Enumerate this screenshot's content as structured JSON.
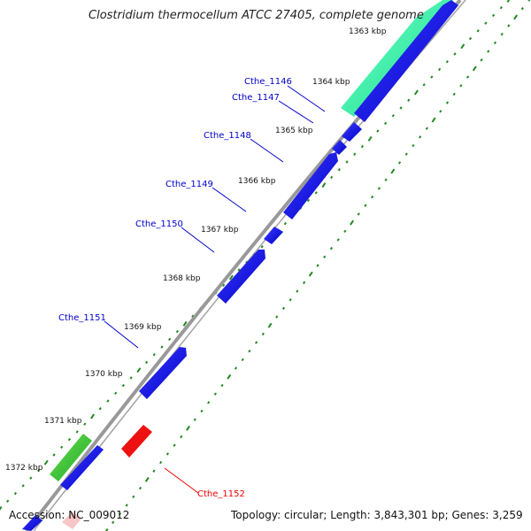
{
  "title": "Clostridium thermocellum ATCC 27405, complete genome",
  "footer": {
    "accession": "Accession: NC_009012",
    "summary": "Topology: circular; Length: 3,843,301 bp; Genes: 3,259"
  },
  "ticks": [
    {
      "label": "1363 kbp"
    },
    {
      "label": "1364 kbp"
    },
    {
      "label": "1365 kbp"
    },
    {
      "label": "1366 kbp"
    },
    {
      "label": "1367 kbp"
    },
    {
      "label": "1368 kbp"
    },
    {
      "label": "1369 kbp"
    },
    {
      "label": "1370 kbp"
    },
    {
      "label": "1371 kbp"
    },
    {
      "label": "1372 kbp"
    }
  ],
  "genes": [
    {
      "label": "Cthe_1146",
      "strand": "forward",
      "color": "#0000ee"
    },
    {
      "label": "Cthe_1147",
      "strand": "forward",
      "color": "#0000ee"
    },
    {
      "label": "Cthe_1148",
      "strand": "forward",
      "color": "#0000ee"
    },
    {
      "label": "Cthe_1149",
      "strand": "forward",
      "color": "#0000ee"
    },
    {
      "label": "Cthe_1150",
      "strand": "forward",
      "color": "#0000ee"
    },
    {
      "label": "Cthe_1151",
      "strand": "forward",
      "color": "#0000ee"
    },
    {
      "label": "Cthe_1152",
      "strand": "reverse",
      "color": "#ee0000"
    }
  ],
  "colors": {
    "forward_cds": "#0000ee",
    "reverse_cds": "#ee0000",
    "feature_green": "#33cc33",
    "feature_cyan": "#33ee99",
    "backbone": "#888888",
    "tick_marks": "#228822"
  }
}
